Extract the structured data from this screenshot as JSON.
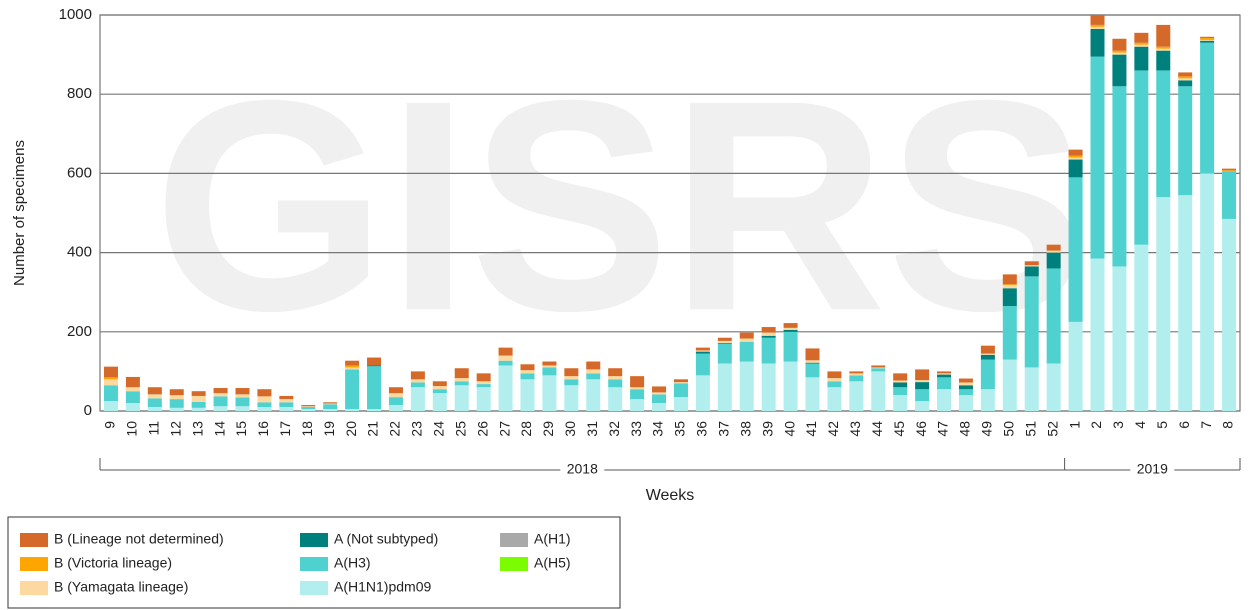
{
  "chart_data": {
    "type": "stacked_bar",
    "watermark": "GISRS",
    "x_label": "Weeks",
    "y_label": "Number of specimens",
    "year_labels": [
      "2018",
      "2019"
    ],
    "categories": [
      "9",
      "10",
      "11",
      "12",
      "13",
      "14",
      "15",
      "16",
      "17",
      "18",
      "19",
      "20",
      "21",
      "22",
      "23",
      "24",
      "25",
      "26",
      "27",
      "28",
      "29",
      "30",
      "31",
      "32",
      "33",
      "34",
      "35",
      "36",
      "37",
      "38",
      "39",
      "40",
      "41",
      "42",
      "43",
      "44",
      "45",
      "46",
      "47",
      "48",
      "49",
      "50",
      "51",
      "52",
      "1",
      "2",
      "3",
      "4",
      "5",
      "6",
      "7",
      "8"
    ],
    "ylim": [
      0,
      1000
    ],
    "yticks": [
      0,
      200,
      400,
      600,
      800,
      1000
    ],
    "grid": true,
    "legend": "bottom-left",
    "series": [
      {
        "name": "B (Lineage not determined)",
        "color": "#d4692a",
        "values": [
          27,
          26,
          18,
          15,
          12,
          13,
          16,
          18,
          8,
          3,
          3,
          12,
          20,
          15,
          20,
          12,
          25,
          20,
          20,
          15,
          10,
          20,
          20,
          20,
          28,
          15,
          7,
          7,
          8,
          15,
          14,
          12,
          30,
          17,
          5,
          5,
          18,
          27,
          5,
          10,
          20,
          25,
          10,
          15,
          15,
          25,
          30,
          25,
          55,
          10,
          3,
          4
        ]
      },
      {
        "name": "B (Victoria lineage)",
        "color": "#ffa500",
        "values": [
          5,
          0,
          0,
          0,
          0,
          0,
          0,
          0,
          0,
          0,
          0,
          5,
          0,
          0,
          0,
          0,
          0,
          0,
          0,
          0,
          0,
          0,
          0,
          0,
          0,
          0,
          0,
          0,
          0,
          0,
          0,
          0,
          0,
          0,
          0,
          0,
          0,
          0,
          0,
          0,
          0,
          2,
          0,
          0,
          5,
          5,
          5,
          5,
          5,
          5,
          5,
          3
        ]
      },
      {
        "name": "B (Yamagata lineage)",
        "color": "#fdd9a0",
        "values": [
          15,
          10,
          10,
          10,
          15,
          8,
          8,
          15,
          8,
          2,
          2,
          5,
          0,
          10,
          8,
          8,
          8,
          7,
          13,
          8,
          5,
          8,
          10,
          8,
          5,
          5,
          3,
          3,
          5,
          8,
          8,
          5,
          6,
          8,
          5,
          2,
          5,
          5,
          3,
          7,
          3,
          8,
          3,
          5,
          5,
          5,
          5,
          5,
          5,
          5,
          2,
          0
        ]
      },
      {
        "name": "A (Not subtyped)",
        "color": "#00807c",
        "values": [
          0,
          0,
          0,
          0,
          0,
          0,
          0,
          0,
          0,
          0,
          0,
          0,
          2,
          0,
          0,
          0,
          0,
          0,
          0,
          0,
          0,
          0,
          0,
          0,
          0,
          0,
          0,
          5,
          2,
          0,
          5,
          5,
          2,
          0,
          0,
          0,
          12,
          18,
          7,
          10,
          12,
          45,
          25,
          40,
          45,
          70,
          80,
          60,
          50,
          15,
          5,
          0
        ]
      },
      {
        "name": "A(H3)",
        "color": "#4ed1cf",
        "values": [
          40,
          30,
          22,
          22,
          15,
          25,
          22,
          12,
          12,
          5,
          12,
          100,
          108,
          20,
          12,
          10,
          10,
          8,
          12,
          15,
          20,
          15,
          15,
          20,
          25,
          22,
          35,
          55,
          50,
          50,
          65,
          75,
          35,
          15,
          15,
          8,
          20,
          30,
          30,
          15,
          75,
          135,
          230,
          240,
          365,
          510,
          455,
          440,
          320,
          275,
          330,
          120
        ]
      },
      {
        "name": "A(H1N1)pdm09",
        "color": "#b3eeee",
        "values": [
          25,
          20,
          10,
          8,
          8,
          12,
          12,
          10,
          10,
          5,
          5,
          5,
          5,
          15,
          60,
          45,
          65,
          60,
          115,
          80,
          90,
          65,
          80,
          60,
          30,
          20,
          35,
          90,
          120,
          125,
          120,
          125,
          85,
          60,
          75,
          100,
          40,
          25,
          55,
          40,
          55,
          130,
          110,
          120,
          225,
          385,
          365,
          420,
          540,
          545,
          600,
          485
        ]
      },
      {
        "name": "A(H1)",
        "color": "#a9a9a9",
        "values": [
          0,
          0,
          0,
          0,
          0,
          0,
          0,
          0,
          0,
          0,
          0,
          0,
          0,
          0,
          0,
          0,
          0,
          0,
          0,
          0,
          0,
          0,
          0,
          0,
          0,
          0,
          0,
          0,
          0,
          0,
          0,
          0,
          0,
          0,
          0,
          0,
          0,
          0,
          0,
          0,
          0,
          0,
          0,
          0,
          0,
          0,
          0,
          0,
          0,
          0,
          0,
          0
        ]
      },
      {
        "name": "A(H5)",
        "color": "#7cfc00",
        "values": [
          0,
          0,
          0,
          0,
          0,
          0,
          0,
          0,
          0,
          0,
          0,
          0,
          0,
          0,
          0,
          0,
          0,
          0,
          0,
          0,
          0,
          0,
          0,
          0,
          0,
          0,
          0,
          0,
          0,
          0,
          0,
          0,
          0,
          0,
          0,
          0,
          0,
          0,
          0,
          0,
          0,
          0,
          0,
          0,
          0,
          0,
          0,
          0,
          0,
          0,
          0,
          0
        ]
      }
    ]
  }
}
